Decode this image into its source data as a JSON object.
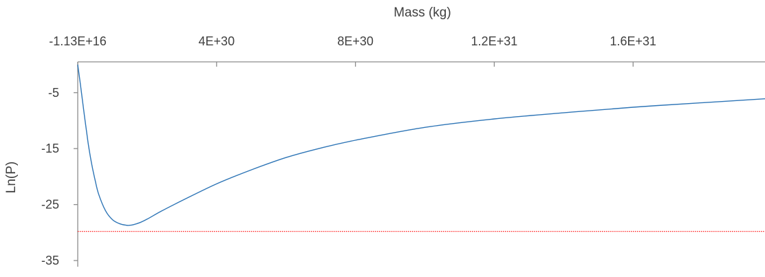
{
  "chart_data": {
    "type": "line",
    "title": "",
    "xlabel": "Mass (kg)",
    "ylabel": "Ln(P)",
    "x_axis_position": "top",
    "x_tick_labels": [
      "-1.13E+16",
      "4E+30",
      "8E+30",
      "1.2E+31",
      "1.6E+31"
    ],
    "x_ticks": [
      0,
      4e+30,
      8e+30,
      1.2e+31,
      1.6e+31
    ],
    "xlim": [
      0,
      1.98e+31
    ],
    "y_tick_labels": [
      "-5",
      "-15",
      "-25",
      "-35"
    ],
    "y_ticks": [
      -5,
      -15,
      -25,
      -35
    ],
    "ylim": [
      -36.1,
      0.5
    ],
    "grid": false,
    "series": [
      {
        "color": "#2e75b6",
        "x": [
          0,
          1e+29,
          2e+29,
          3e+29,
          4e+29,
          5e+29,
          6e+29,
          8e+29,
          1e+30,
          1.2e+30,
          1.4e+30,
          1.5e+30,
          1.6e+30,
          1.8e+30,
          2e+30,
          2.4e+30,
          3e+30,
          4e+30,
          5e+30,
          6e+30,
          7e+30,
          8e+30,
          1e+31,
          1.2e+31,
          1.4e+31,
          1.6e+31,
          1.8e+31,
          1.98e+31
        ],
        "y": [
          0,
          -4.6,
          -9.5,
          -14,
          -17.7,
          -20.6,
          -23.1,
          -26.1,
          -27.7,
          -28.4,
          -28.7,
          -28.7,
          -28.6,
          -28.2,
          -27.6,
          -26.2,
          -24.3,
          -21.3,
          -18.8,
          -16.6,
          -14.9,
          -13.5,
          -11.2,
          -9.7,
          -8.6,
          -7.6,
          -6.8,
          -6.1
        ]
      },
      {
        "color": "#ff0000",
        "style": "dotted",
        "x": [
          0,
          1.98e+31
        ],
        "y": [
          -29.8,
          -29.8
        ]
      }
    ]
  }
}
